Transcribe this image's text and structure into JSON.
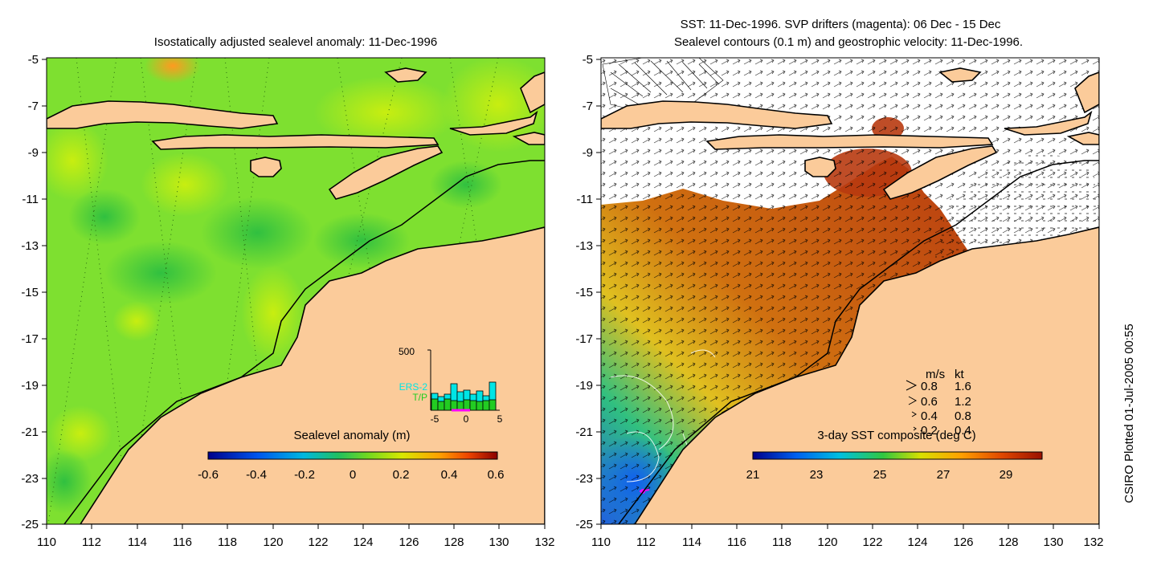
{
  "left_panel": {
    "title": "Isostatically adjusted sealevel anomaly: 11-Dec-1996",
    "colorbar_label": "Sealevel anomaly (m)",
    "colorbar_ticks": [
      "-0.6",
      "-0.4",
      "-0.2",
      "0",
      "0.2",
      "0.4",
      "0.6"
    ],
    "histogram": {
      "ymax_label": "500",
      "series_labels": [
        "ERS-2",
        "T/P"
      ],
      "x_ticks": [
        "-5",
        "0",
        "5"
      ],
      "colors": {
        "ers2": "#00e5e5",
        "tp": "#22cc22",
        "marker": "#ff00ff"
      }
    }
  },
  "right_panel": {
    "title_line1": "SST: 11-Dec-1996. SVP drifters (magenta): 06 Dec - 15 Dec",
    "title_line2": "Sealevel contours (0.1 m) and geostrophic velocity: 11-Dec-1996.",
    "colorbar_label": "3-day SST composite (deg C)",
    "colorbar_ticks": [
      "21",
      "23",
      "25",
      "27",
      "29"
    ],
    "speed_legend": {
      "header": [
        "m/s",
        "kt"
      ],
      "rows": [
        [
          "0.8",
          "1.6"
        ],
        [
          "0.6",
          "1.2"
        ],
        [
          "0.4",
          "0.8"
        ],
        [
          "0.2",
          "0.4"
        ]
      ]
    }
  },
  "axes": {
    "y_ticks": [
      "-5",
      "-7",
      "-9",
      "-11",
      "-13",
      "-15",
      "-17",
      "-19",
      "-21",
      "-23",
      "-25"
    ],
    "x_ticks": [
      "110",
      "112",
      "114",
      "116",
      "118",
      "120",
      "122",
      "124",
      "126",
      "128",
      "130",
      "132"
    ]
  },
  "credit": "CSIRO Plotted 01-Jul-2005 00:55",
  "colors": {
    "land": "#fbcb9a",
    "sea_green": "#7ee030",
    "no_data": "#ffffff",
    "sst_warm": "#c04018"
  }
}
